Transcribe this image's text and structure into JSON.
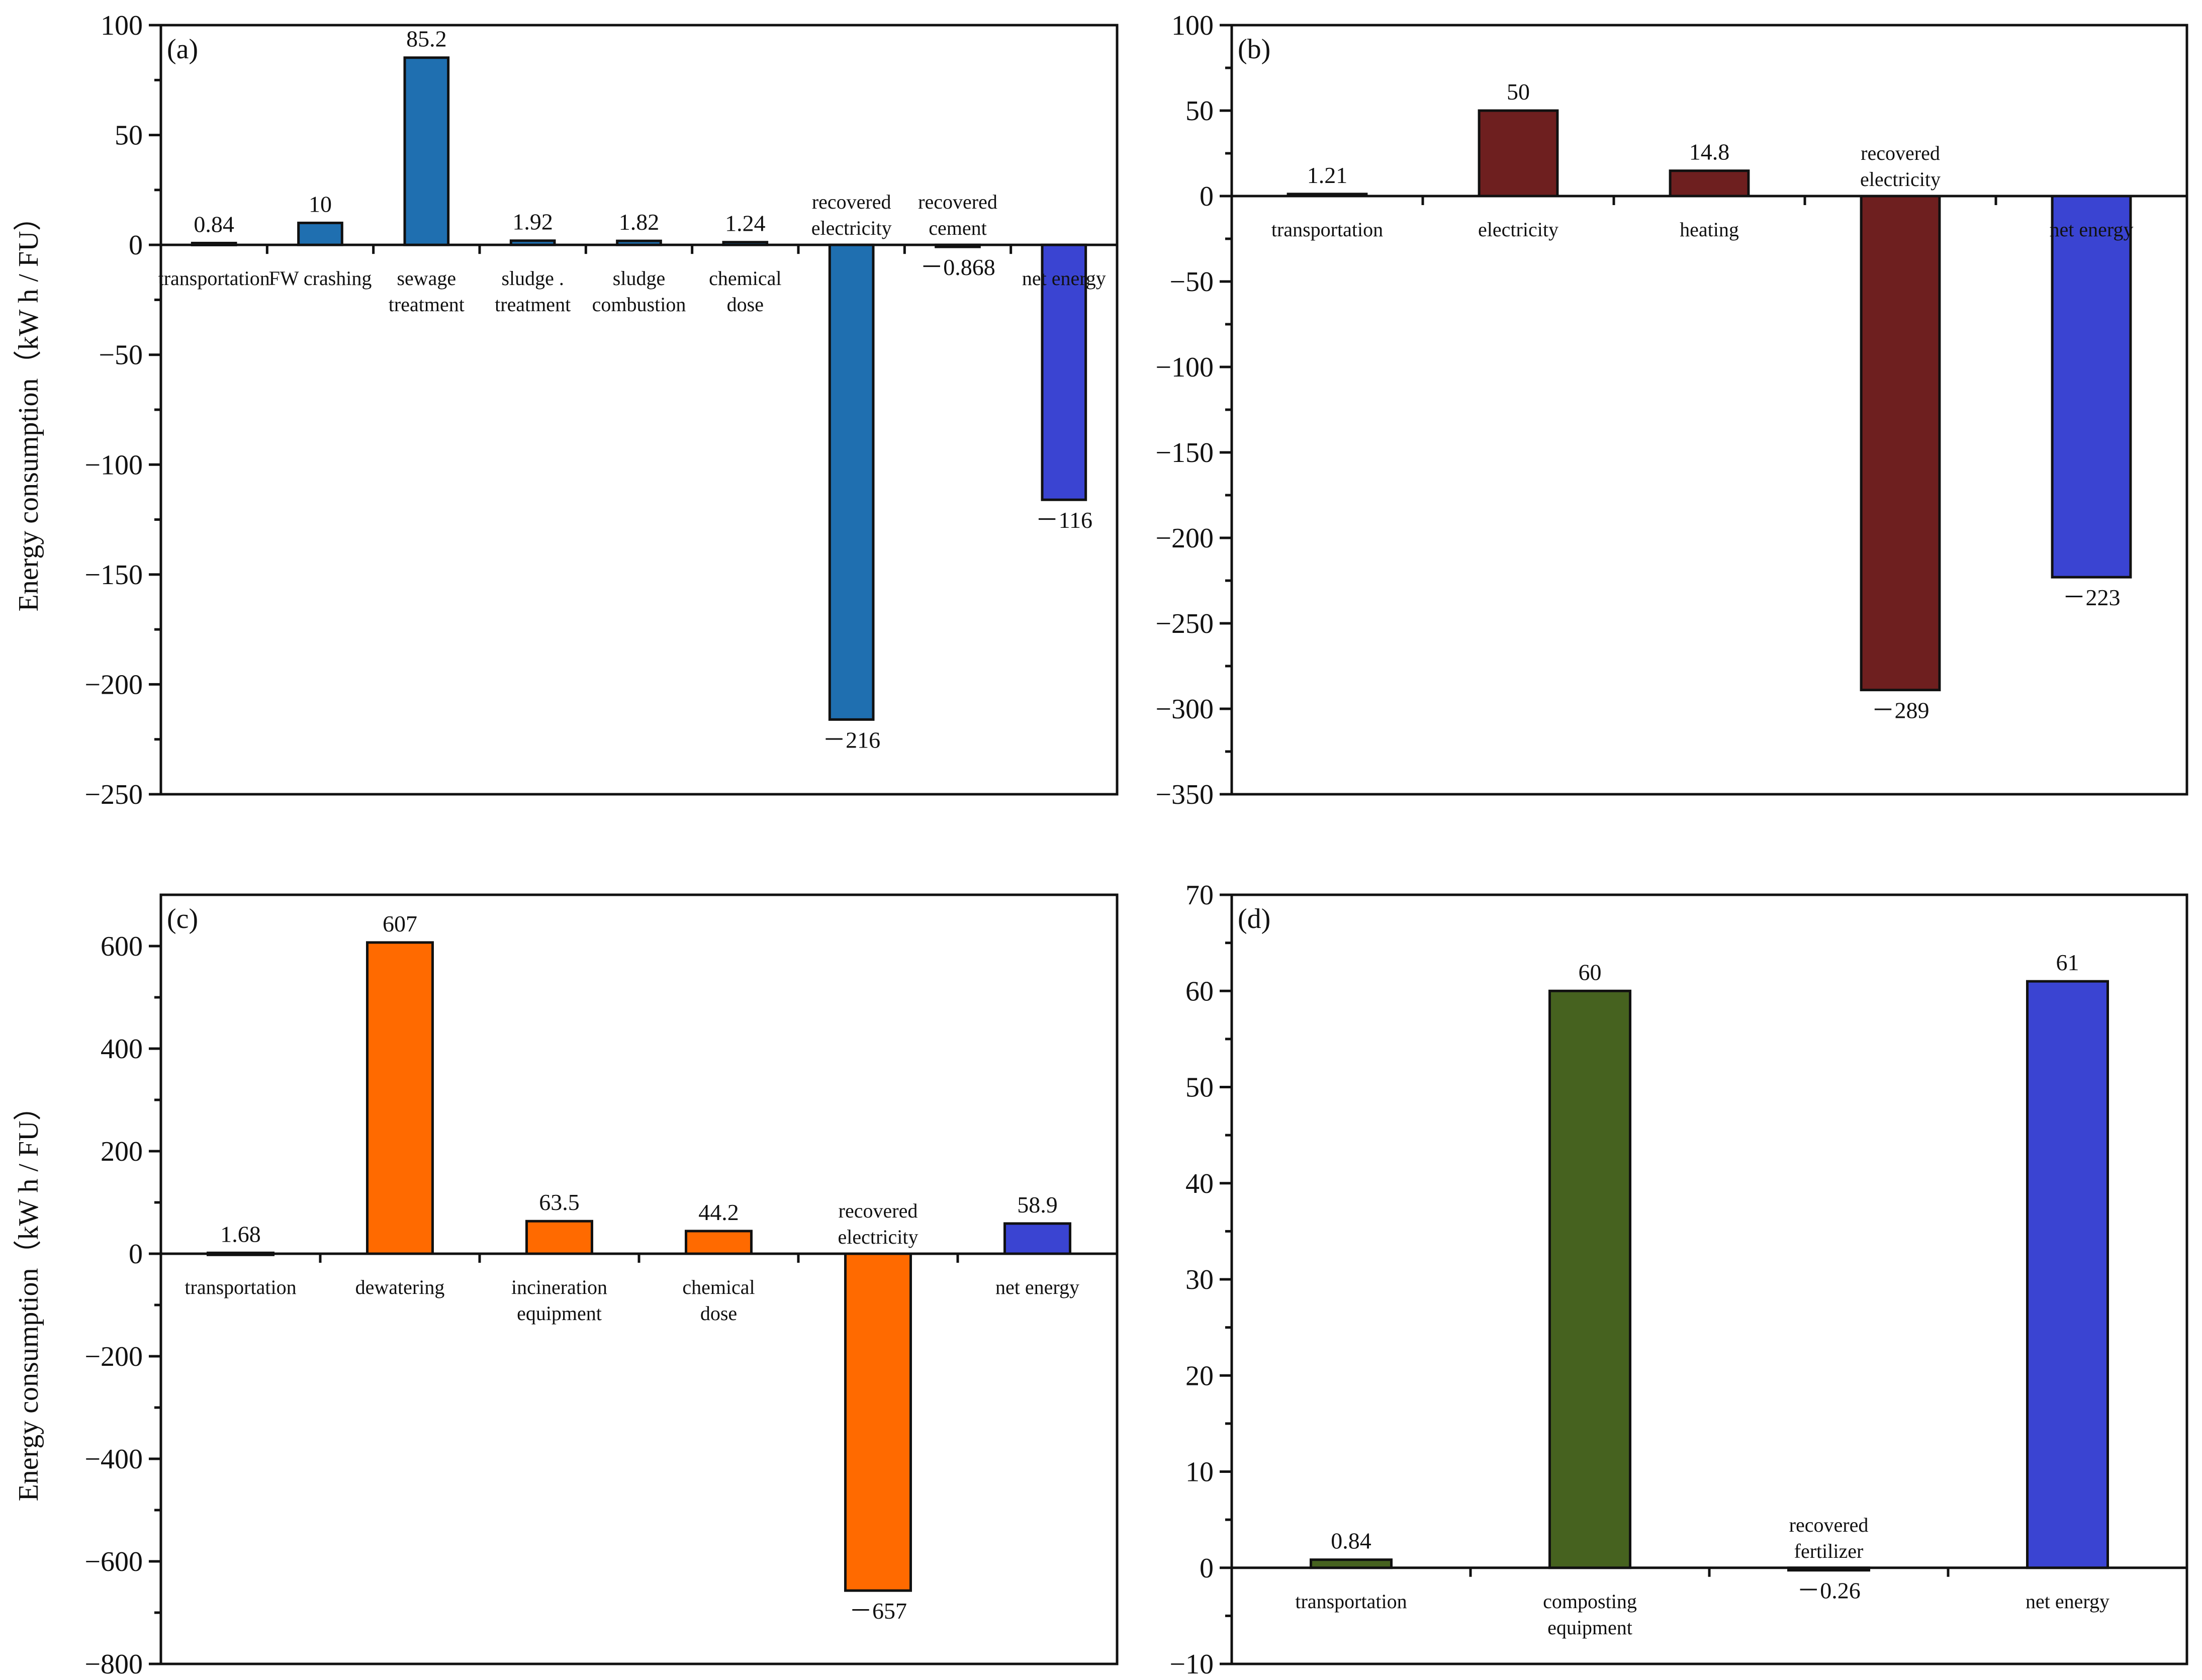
{
  "y_label_top": "Energy consumption（kW h / FU）",
  "y_label_bottom": "Energy consumption（kW h / FU）",
  "chart_data": [
    {
      "panel": "(a)",
      "type": "bar",
      "ylim": [
        -250,
        100
      ],
      "yticks": [
        -250,
        -200,
        -150,
        -100,
        -50,
        0,
        50,
        100
      ],
      "color": "#1f6fb0",
      "categories": [
        "transportation",
        "FW crashing",
        "sewage treatment",
        "sludge . treatment",
        "sludge combustion",
        "chemical dose",
        "recovered electricity",
        "recovered cement",
        "net energy"
      ],
      "category_lines": [
        [
          "transportation"
        ],
        [
          "FW crashing"
        ],
        [
          "sewage",
          "treatment"
        ],
        [
          "sludge .",
          "treatment"
        ],
        [
          "sludge",
          "combustion"
        ],
        [
          "chemical",
          "dose"
        ],
        [
          "recovered",
          "electricity"
        ],
        [
          "recovered",
          "cement"
        ],
        [
          "net energy"
        ]
      ],
      "values": [
        0.84,
        10,
        85.2,
        1.92,
        1.82,
        1.24,
        -216,
        -0.868,
        -116
      ],
      "value_labels": [
        "0.84",
        "10",
        "85.2",
        "1.92",
        "1.82",
        "1.24",
        "－216",
        "－0.868",
        "－116"
      ],
      "bar_colors": [
        "#1f6fb0",
        "#1f6fb0",
        "#1f6fb0",
        "#1f6fb0",
        "#1f6fb0",
        "#1f6fb0",
        "#1f6fb0",
        "#1f6fb0",
        "#3a44d2"
      ]
    },
    {
      "panel": "(b)",
      "type": "bar",
      "ylim": [
        -350,
        100
      ],
      "yticks": [
        -350,
        -300,
        -250,
        -200,
        -150,
        -100,
        -50,
        0,
        50,
        100
      ],
      "color": "#6e1f1f",
      "categories": [
        "transportation",
        "electricity",
        "heating",
        "recovered electricity",
        "net energy"
      ],
      "category_lines": [
        [
          "transportation"
        ],
        [
          "electricity"
        ],
        [
          "heating"
        ],
        [
          "recovered",
          "electricity"
        ],
        [
          "net energy"
        ]
      ],
      "values": [
        1.21,
        50,
        14.8,
        -289,
        -223
      ],
      "value_labels": [
        "1.21",
        "50",
        "14.8",
        "－289",
        "－223"
      ],
      "bar_colors": [
        "#6e1f1f",
        "#6e1f1f",
        "#6e1f1f",
        "#6e1f1f",
        "#3a44d2"
      ]
    },
    {
      "panel": "(c)",
      "type": "bar",
      "ylim": [
        -800,
        700
      ],
      "yticks": [
        -800,
        -600,
        -400,
        -200,
        0,
        200,
        400,
        600
      ],
      "color": "#ff6a00",
      "categories": [
        "transportation",
        "dewatering",
        "incineration equipment",
        "chemical dose",
        "recovered electricity",
        "net energy"
      ],
      "category_lines": [
        [
          "transportation"
        ],
        [
          "dewatering"
        ],
        [
          "incineration",
          "equipment"
        ],
        [
          "chemical",
          "dose"
        ],
        [
          "recovered",
          "electricity"
        ],
        [
          "net energy"
        ]
      ],
      "values": [
        1.68,
        607,
        63.5,
        44.2,
        -657,
        58.9
      ],
      "value_labels": [
        "1.68",
        "607",
        "63.5",
        "44.2",
        "－657",
        "58.9"
      ],
      "bar_colors": [
        "#ff6a00",
        "#ff6a00",
        "#ff6a00",
        "#ff6a00",
        "#ff6a00",
        "#3a44d2"
      ]
    },
    {
      "panel": "(d)",
      "type": "bar",
      "ylim": [
        -10,
        70
      ],
      "yticks": [
        -10,
        0,
        10,
        20,
        30,
        40,
        50,
        60,
        70
      ],
      "color": "#46621f",
      "categories": [
        "transportation",
        "composting equipment",
        "recovered fertilizer",
        "net energy"
      ],
      "category_lines": [
        [
          "transportation"
        ],
        [
          "composting",
          "equipment"
        ],
        [
          "recovered",
          "fertilizer"
        ],
        [
          "net energy"
        ]
      ],
      "values": [
        0.84,
        60,
        -0.26,
        61
      ],
      "value_labels": [
        "0.84",
        "60",
        "－0.26",
        "61"
      ],
      "bar_colors": [
        "#46621f",
        "#46621f",
        "#46621f",
        "#3a44d2"
      ]
    }
  ]
}
